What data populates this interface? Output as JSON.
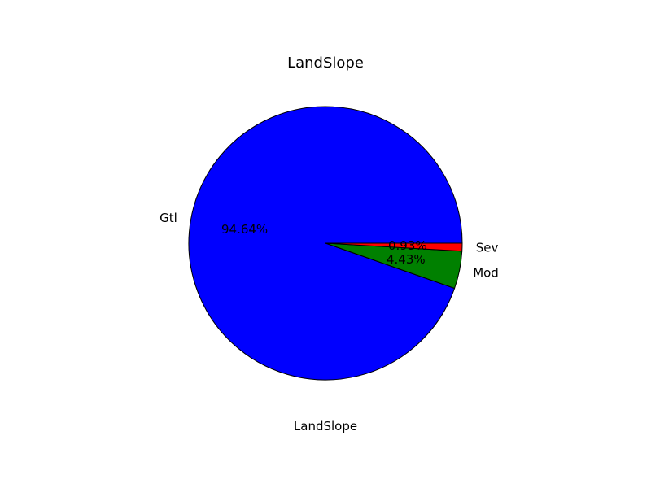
{
  "chart_data": {
    "type": "pie",
    "title": "LandSlope",
    "xlabel": "LandSlope",
    "ylabel": "",
    "categories": [
      "Gtl",
      "Mod",
      "Sev"
    ],
    "values": [
      94.64,
      4.43,
      0.93
    ],
    "value_labels": [
      "94.64%",
      "4.43%",
      "0.93%"
    ],
    "colors": [
      "#0000ff",
      "#008000",
      "#ff0000"
    ],
    "start_angle_deg": 0,
    "direction": "counterclockwise",
    "edge_color": "#000000",
    "legend": "none",
    "grid": false
  }
}
